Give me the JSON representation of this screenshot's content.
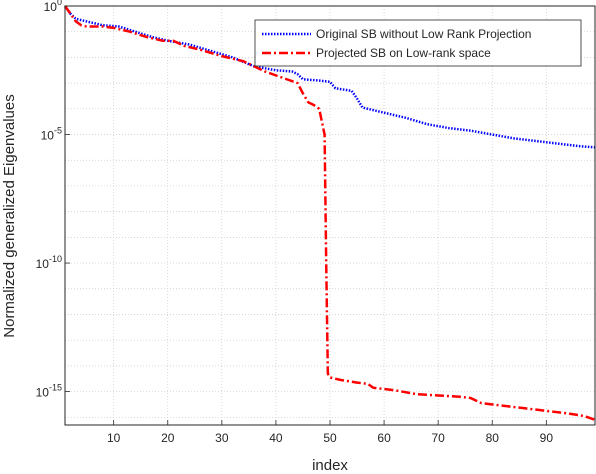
{
  "chart_data": {
    "type": "line",
    "xlabel": "index",
    "ylabel": "Normalized generalized Eigenvalues",
    "xlim": [
      1,
      99
    ],
    "ylim_log10": [
      -16.3,
      0
    ],
    "yscale": "log",
    "grid": true,
    "legend_position": "top-right",
    "x_ticks": [
      10,
      20,
      30,
      40,
      50,
      60,
      70,
      80,
      90
    ],
    "y_ticks": [
      {
        "base": "10",
        "exp": "0",
        "log10": 0
      },
      {
        "base": "10",
        "exp": "-5",
        "log10": -5
      },
      {
        "base": "10",
        "exp": "-10",
        "log10": -10
      },
      {
        "base": "10",
        "exp": "-15",
        "log10": -15
      }
    ],
    "series": [
      {
        "name": "Original SB without Low Rank Projection",
        "color": "#0000ff",
        "style": "dotted",
        "points_log10": [
          [
            1,
            0
          ],
          [
            2,
            -0.3
          ],
          [
            3,
            -0.5
          ],
          [
            5,
            -0.6
          ],
          [
            8,
            -0.75
          ],
          [
            11,
            -0.8
          ],
          [
            14,
            -1.0
          ],
          [
            17,
            -1.2
          ],
          [
            20,
            -1.35
          ],
          [
            24,
            -1.5
          ],
          [
            28,
            -1.75
          ],
          [
            32,
            -2.0
          ],
          [
            36,
            -2.35
          ],
          [
            40,
            -2.5
          ],
          [
            43,
            -2.55
          ],
          [
            44,
            -2.65
          ],
          [
            45,
            -2.85
          ],
          [
            48,
            -2.9
          ],
          [
            50,
            -2.95
          ],
          [
            51,
            -3.2
          ],
          [
            54,
            -3.3
          ],
          [
            55,
            -3.6
          ],
          [
            56,
            -3.95
          ],
          [
            58,
            -4.05
          ],
          [
            60,
            -4.15
          ],
          [
            64,
            -4.35
          ],
          [
            68,
            -4.6
          ],
          [
            72,
            -4.75
          ],
          [
            76,
            -4.85
          ],
          [
            80,
            -5.0
          ],
          [
            84,
            -5.15
          ],
          [
            88,
            -5.25
          ],
          [
            92,
            -5.35
          ],
          [
            96,
            -5.45
          ],
          [
            99,
            -5.5
          ]
        ]
      },
      {
        "name": "Projected SB on Low-rank space",
        "color": "#ff0000",
        "style": "dash-dot",
        "points_log10": [
          [
            1,
            0
          ],
          [
            2,
            -0.3
          ],
          [
            3,
            -0.6
          ],
          [
            4,
            -0.75
          ],
          [
            5,
            -0.8
          ],
          [
            8,
            -0.8
          ],
          [
            10,
            -0.85
          ],
          [
            13,
            -1.0
          ],
          [
            16,
            -1.2
          ],
          [
            19,
            -1.35
          ],
          [
            21,
            -1.35
          ],
          [
            23,
            -1.55
          ],
          [
            26,
            -1.7
          ],
          [
            30,
            -1.95
          ],
          [
            34,
            -2.15
          ],
          [
            38,
            -2.55
          ],
          [
            42,
            -2.85
          ],
          [
            44,
            -3.0
          ],
          [
            45,
            -3.4
          ],
          [
            46,
            -3.75
          ],
          [
            47,
            -3.85
          ],
          [
            48,
            -4.0
          ],
          [
            49,
            -5.0
          ],
          [
            49.3,
            -10.0
          ],
          [
            49.6,
            -14.3
          ],
          [
            50,
            -14.45
          ],
          [
            52,
            -14.55
          ],
          [
            55,
            -14.65
          ],
          [
            57,
            -14.7
          ],
          [
            58,
            -14.85
          ],
          [
            60,
            -14.9
          ],
          [
            62,
            -14.95
          ],
          [
            66,
            -15.1
          ],
          [
            70,
            -15.15
          ],
          [
            74,
            -15.2
          ],
          [
            76,
            -15.25
          ],
          [
            78,
            -15.45
          ],
          [
            82,
            -15.55
          ],
          [
            86,
            -15.65
          ],
          [
            90,
            -15.75
          ],
          [
            94,
            -15.85
          ],
          [
            97,
            -15.95
          ],
          [
            99,
            -16.1
          ]
        ]
      }
    ]
  }
}
